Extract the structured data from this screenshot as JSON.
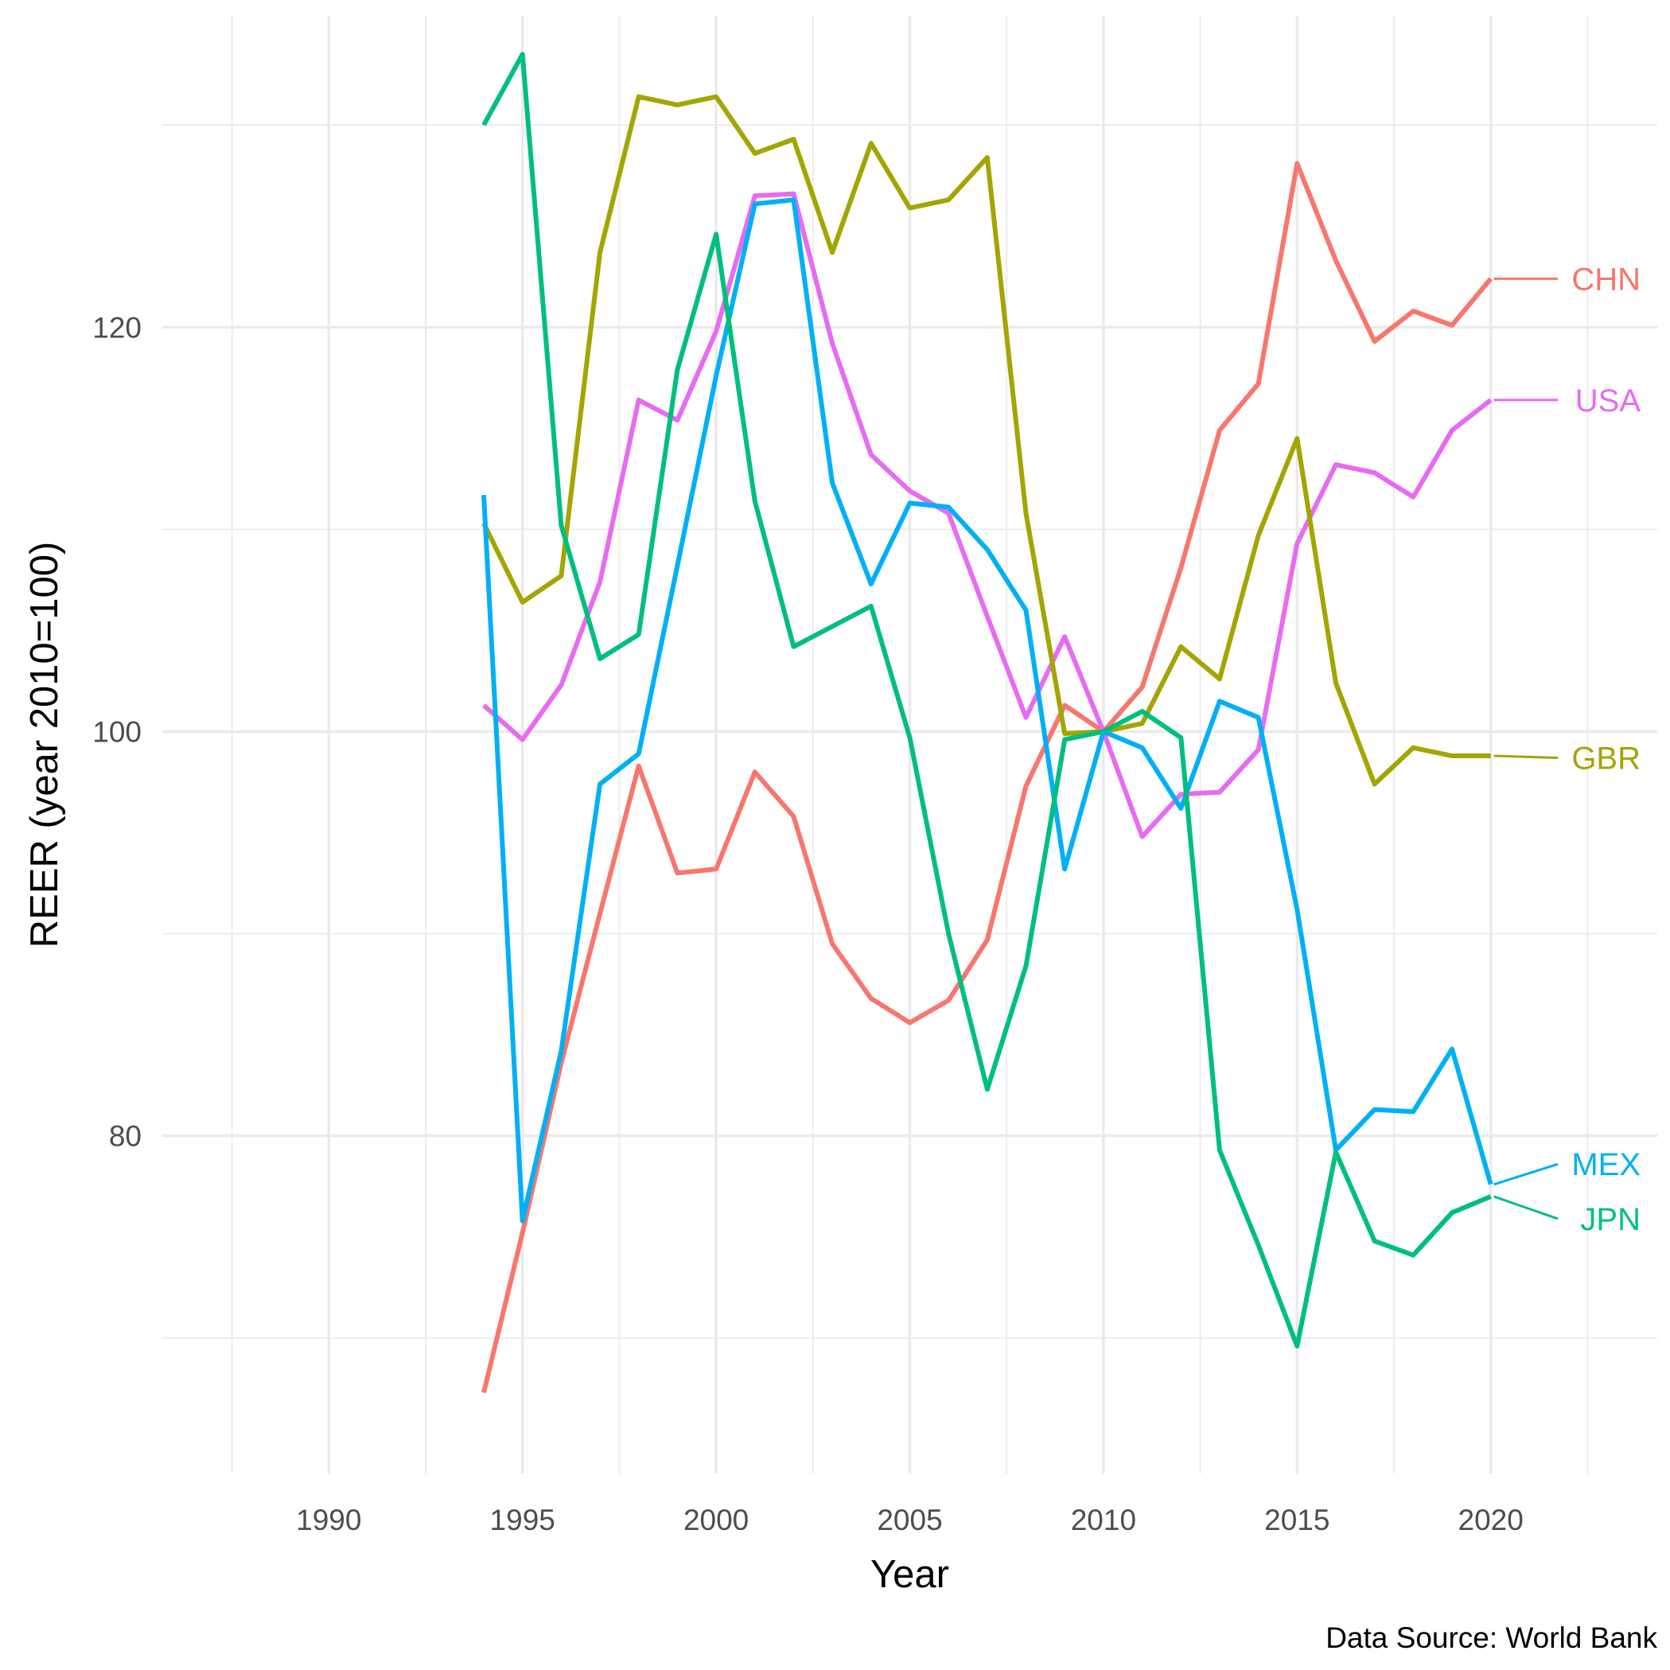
{
  "chart_data": {
    "type": "line",
    "title": "",
    "xlabel": "Year",
    "ylabel": "REER (year 2010=100)",
    "caption": "Data Source: World Bank",
    "xlim": [
      1985.7,
      2024.3
    ],
    "ylim": [
      63.3,
      135.4
    ],
    "x_major_ticks": [
      1990,
      1995,
      2000,
      2005,
      2010,
      2015,
      2020
    ],
    "x_minor_ticks": [
      1987.5,
      1992.5,
      1997.5,
      2002.5,
      2007.5,
      2012.5,
      2017.5,
      2022.5
    ],
    "y_major_ticks": [
      80,
      100,
      120
    ],
    "y_minor_ticks": [
      70,
      90,
      110,
      130
    ],
    "grid": true,
    "legend": "direct labels at right end of each line",
    "x": [
      1994,
      1995,
      1996,
      1997,
      1998,
      1999,
      2000,
      2001,
      2002,
      2003,
      2004,
      2005,
      2006,
      2007,
      2008,
      2009,
      2010,
      2011,
      2012,
      2013,
      2014,
      2015,
      2016,
      2017,
      2018,
      2019,
      2020
    ],
    "series": [
      {
        "name": "CHN",
        "color": "#F8766D",
        "label_y": 122.4,
        "values": [
          67.3,
          75.2,
          83.6,
          91.0,
          98.3,
          93.0,
          93.2,
          98.0,
          95.8,
          89.5,
          86.8,
          85.6,
          86.7,
          89.7,
          97.3,
          101.3,
          100.0,
          102.2,
          108.1,
          114.9,
          117.2,
          128.1,
          123.3,
          119.3,
          120.8,
          120.1,
          122.4
        ]
      },
      {
        "name": "USA",
        "color": "#E76BF3",
        "label_y": 116.4,
        "values": [
          101.3,
          99.6,
          102.3,
          107.4,
          116.4,
          115.4,
          119.8,
          126.5,
          126.6,
          119.2,
          113.7,
          111.9,
          110.8,
          105.7,
          100.7,
          104.7,
          100.0,
          94.8,
          96.9,
          97.0,
          99.1,
          109.3,
          113.2,
          112.8,
          111.6,
          114.9,
          116.4
        ]
      },
      {
        "name": "GBR",
        "color": "#A3A500",
        "label_y": 98.7,
        "values": [
          110.3,
          106.4,
          107.7,
          123.7,
          131.4,
          131.0,
          131.4,
          128.6,
          129.3,
          123.7,
          129.1,
          125.9,
          126.3,
          128.4,
          110.8,
          99.9,
          100.0,
          100.4,
          104.2,
          102.6,
          109.7,
          114.5,
          102.4,
          97.4,
          99.2,
          98.8,
          98.8
        ]
      },
      {
        "name": "MEX",
        "color": "#00B0F6",
        "label_y": 78.6,
        "values": [
          111.7,
          75.8,
          84.2,
          97.4,
          98.9,
          108.2,
          117.6,
          126.1,
          126.3,
          112.3,
          107.3,
          111.3,
          111.1,
          109.0,
          106.0,
          93.2,
          100.0,
          99.2,
          96.2,
          101.5,
          100.7,
          91.2,
          79.3,
          81.3,
          81.2,
          84.3,
          77.6
        ]
      },
      {
        "name": "JPN",
        "color": "#00BF7D",
        "label_y": 75.9,
        "values": [
          130.0,
          133.5,
          110.2,
          103.6,
          104.8,
          117.9,
          124.6,
          111.4,
          104.2,
          105.2,
          106.2,
          99.7,
          90.0,
          82.3,
          88.4,
          99.6,
          100.0,
          101.0,
          99.7,
          79.3,
          74.6,
          69.6,
          79.2,
          74.8,
          74.1,
          76.2,
          77.0
        ]
      }
    ]
  }
}
